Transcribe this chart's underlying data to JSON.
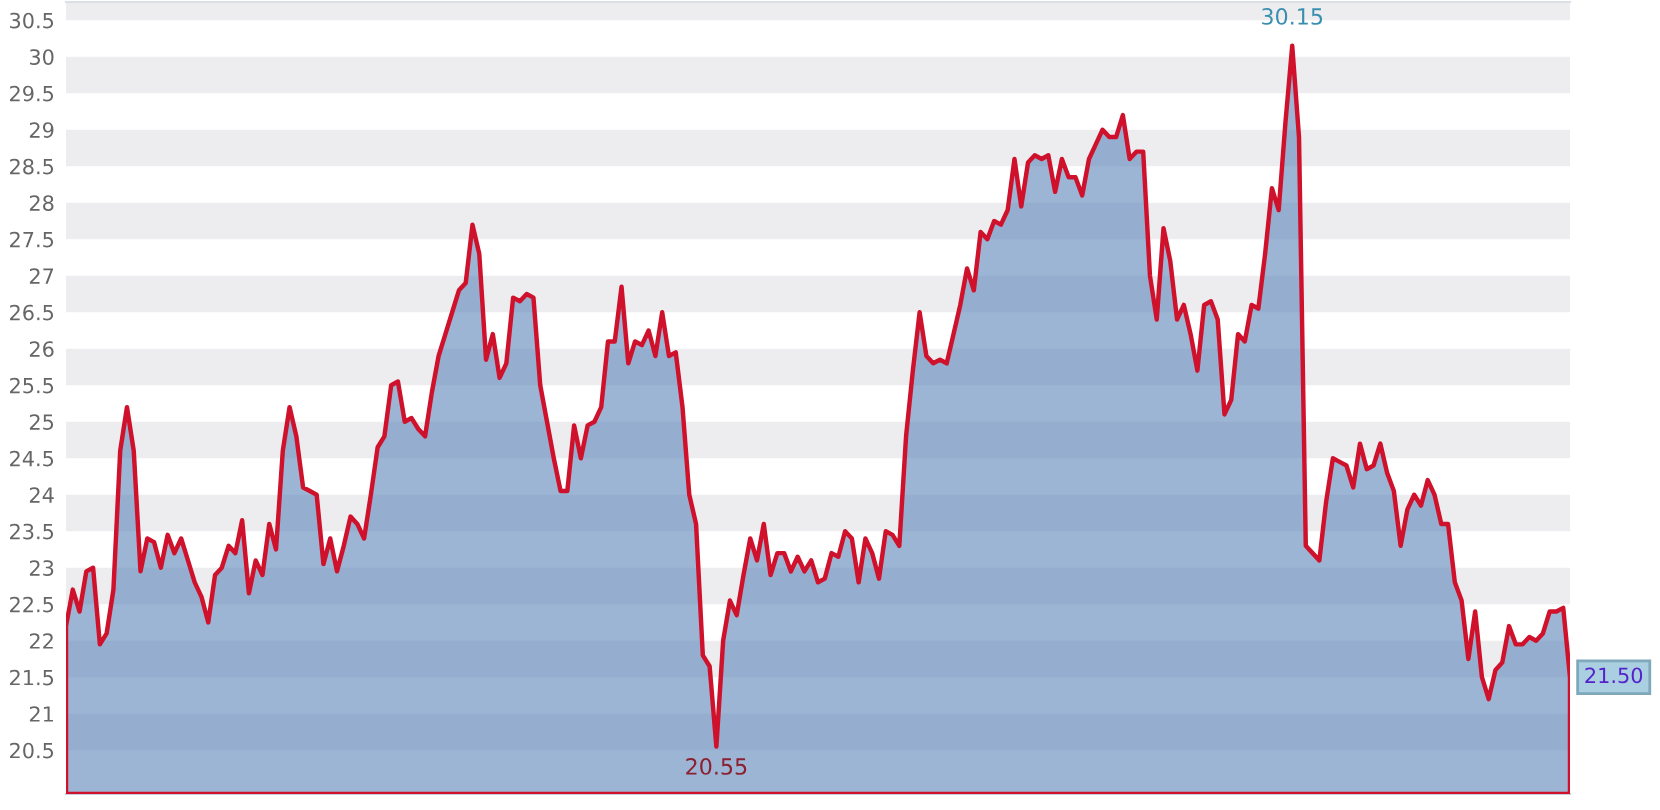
{
  "chart_data": {
    "type": "area",
    "categories": [
      null,
      null,
      null,
      null,
      null,
      null,
      null,
      null,
      null,
      null,
      null,
      null,
      null,
      null,
      null,
      null,
      null,
      null,
      null,
      null,
      null,
      null,
      null,
      null,
      null,
      null,
      null,
      null,
      null,
      null,
      null,
      null,
      null,
      null,
      null,
      null,
      null,
      null,
      null,
      null,
      null,
      null,
      null,
      null,
      null,
      null,
      null,
      null,
      null,
      null,
      null,
      null,
      null,
      null,
      null,
      null,
      null,
      null,
      null,
      null,
      null,
      null,
      null,
      null,
      null,
      null,
      null,
      null,
      null,
      null,
      null,
      null,
      null,
      null,
      null,
      null,
      null,
      null,
      null,
      null,
      null,
      null,
      null,
      null,
      null,
      null,
      null,
      null,
      null,
      null,
      null,
      null,
      null,
      null,
      null,
      null,
      null,
      null,
      null,
      null,
      null,
      null,
      null,
      null,
      null,
      null,
      null,
      null,
      null,
      null,
      null,
      null,
      null,
      null,
      null,
      null,
      null,
      null,
      null,
      null,
      null,
      null,
      null,
      null,
      null,
      null,
      null,
      null,
      null,
      null,
      null,
      null,
      null,
      null,
      null,
      null,
      null,
      null,
      null,
      null,
      null,
      null,
      null,
      null,
      null,
      null,
      null,
      null,
      null,
      null,
      null,
      null,
      null,
      null,
      null,
      null,
      null,
      null,
      null,
      null,
      null,
      null,
      null,
      null,
      null,
      null,
      null,
      null,
      null,
      null,
      null,
      null,
      null,
      null,
      null,
      null,
      null,
      null,
      null,
      null,
      null,
      null,
      null,
      null,
      null,
      null,
      null,
      null,
      null,
      null,
      null,
      null,
      null,
      null,
      null,
      null,
      null,
      null,
      null,
      null,
      null,
      null,
      null,
      null,
      null,
      null,
      null,
      null,
      null,
      null,
      null,
      null,
      null,
      null,
      null,
      null,
      null,
      null,
      null,
      null,
      null,
      null,
      null
    ],
    "series": [
      {
        "color": "#d0112b",
        "values": [
          22.2,
          22.7,
          22.4,
          22.95,
          23.0,
          21.95,
          22.1,
          22.7,
          24.6,
          25.2,
          24.6,
          22.95,
          23.4,
          23.35,
          23.0,
          23.45,
          23.2,
          23.4,
          23.1,
          22.8,
          22.6,
          22.25,
          22.9,
          23.0,
          23.3,
          23.2,
          23.65,
          22.65,
          23.1,
          22.9,
          23.6,
          23.25,
          24.6,
          25.2,
          24.8,
          24.1,
          24.05,
          24.0,
          23.05,
          23.4,
          22.95,
          23.3,
          23.7,
          23.6,
          23.4,
          24.0,
          24.65,
          24.8,
          25.5,
          25.55,
          25.0,
          25.05,
          24.9,
          24.8,
          25.4,
          25.9,
          26.2,
          26.5,
          26.8,
          26.9,
          27.7,
          27.3,
          25.85,
          26.2,
          25.6,
          25.8,
          26.7,
          26.65,
          26.75,
          26.7,
          25.5,
          25.0,
          24.5,
          24.05,
          24.05,
          24.95,
          24.5,
          24.95,
          25.0,
          25.2,
          26.1,
          26.1,
          26.85,
          25.8,
          26.1,
          26.05,
          26.25,
          25.9,
          26.5,
          25.9,
          25.95,
          25.2,
          24.0,
          23.6,
          21.8,
          21.65,
          20.55,
          22.0,
          22.55,
          22.35,
          22.9,
          23.4,
          23.1,
          23.6,
          22.9,
          23.2,
          23.2,
          22.95,
          23.15,
          22.95,
          23.1,
          22.8,
          22.85,
          23.2,
          23.15,
          23.5,
          23.4,
          22.8,
          23.4,
          23.2,
          22.85,
          23.5,
          23.45,
          23.3,
          24.8,
          25.7,
          26.5,
          25.9,
          25.8,
          25.85,
          25.8,
          26.2,
          26.6,
          27.1,
          26.8,
          27.6,
          27.5,
          27.75,
          27.7,
          27.9,
          28.6,
          27.95,
          28.55,
          28.65,
          28.6,
          28.65,
          28.15,
          28.6,
          28.35,
          28.35,
          28.1,
          28.6,
          28.8,
          29.0,
          28.9,
          28.9,
          29.2,
          28.6,
          28.7,
          28.7,
          27.0,
          26.4,
          27.65,
          27.2,
          26.4,
          26.6,
          26.2,
          25.7,
          26.6,
          26.65,
          26.4,
          25.1,
          25.3,
          26.2,
          26.1,
          26.6,
          26.55,
          27.3,
          28.2,
          27.9,
          29.1,
          30.15,
          28.9,
          23.3,
          23.2,
          23.1,
          23.9,
          24.5,
          24.45,
          24.4,
          24.1,
          24.7,
          24.35,
          24.4,
          24.7,
          24.3,
          24.05,
          23.3,
          23.8,
          24.0,
          23.85,
          24.2,
          24.0,
          23.6,
          23.6,
          22.8,
          22.55,
          21.75,
          22.4,
          21.5,
          21.2,
          21.6,
          21.7,
          22.2,
          21.95,
          21.95,
          22.05,
          22.0,
          22.1,
          22.4,
          22.4,
          22.45,
          21.5
        ]
      }
    ],
    "ylim": [
      19.9,
      30.75
    ],
    "yticks": [
      20.5,
      21,
      21.5,
      22,
      22.5,
      23,
      23.5,
      24,
      24.5,
      25,
      25.5,
      26,
      26.5,
      27,
      27.5,
      28,
      28.5,
      29,
      29.5,
      30,
      30.5
    ],
    "bands": [
      {
        "axis": "y",
        "from": 20.5,
        "to": 21,
        "color": "#ededf0"
      },
      {
        "axis": "y",
        "from": 21.5,
        "to": 22,
        "color": "#ededf0"
      },
      {
        "axis": "y",
        "from": 22.5,
        "to": 23,
        "color": "#ededf0"
      },
      {
        "axis": "y",
        "from": 23.5,
        "to": 24,
        "color": "#ededf0"
      },
      {
        "axis": "y",
        "from": 24.5,
        "to": 25,
        "color": "#ededf0"
      },
      {
        "axis": "y",
        "from": 25.5,
        "to": 26,
        "color": "#ededf0"
      },
      {
        "axis": "y",
        "from": 26.5,
        "to": 27,
        "color": "#ededf0"
      },
      {
        "axis": "y",
        "from": 27.5,
        "to": 28,
        "color": "#ededf0"
      },
      {
        "axis": "y",
        "from": 28.5,
        "to": 29,
        "color": "#ededf0"
      },
      {
        "axis": "y",
        "from": 29.5,
        "to": 30,
        "color": "#ededf0"
      },
      {
        "axis": "y",
        "from": 30.5,
        "to": 30.75,
        "color": "#ededf0"
      }
    ],
    "annotations": [
      {
        "text": "30.15",
        "y": 30.15
      },
      {
        "text": "20.55",
        "y": 20.55
      },
      "21.50"
    ]
  }
}
